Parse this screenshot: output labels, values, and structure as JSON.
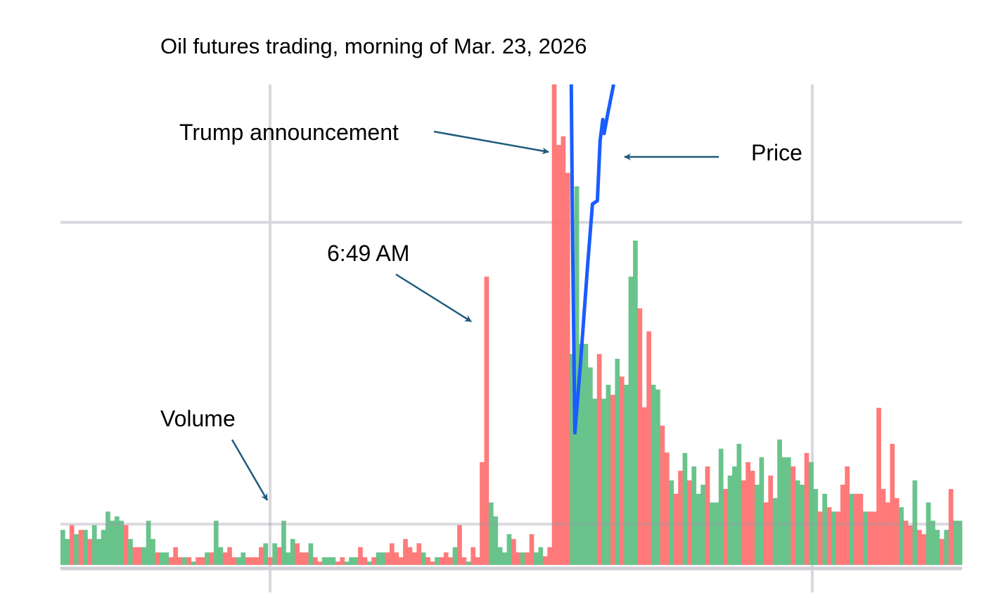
{
  "chart_data": {
    "type": "bar",
    "title": "Oil futures trading, morning of Mar. 23, 2026",
    "xlabel": "",
    "ylabel": "",
    "ylim": [
      0,
      100
    ],
    "grid": true,
    "colors": {
      "up": "#5cbf82",
      "down": "#ff6f6f",
      "price": "#1a5cff",
      "annotation_arrow": "#1e5b7c",
      "grid": "#d8d8de"
    },
    "volume": {
      "values": [
        7.3,
        5.4,
        8.3,
        6.4,
        7.3,
        7.3,
        5.4,
        8.3,
        5.4,
        7.3,
        11.1,
        9.2,
        10.1,
        9.2,
        8.3,
        5.4,
        3.7,
        3.7,
        3.7,
        9.2,
        5.4,
        2.6,
        2.6,
        2.6,
        1.6,
        3.7,
        1.6,
        1.6,
        1.6,
        0.7,
        1.6,
        1.6,
        2.6,
        2.6,
        9.2,
        3.7,
        2.6,
        3.7,
        1.6,
        1.6,
        2.6,
        1.6,
        1.6,
        1.6,
        3.7,
        4.5,
        1.6,
        4.5,
        3.7,
        9.2,
        2.6,
        5.4,
        4.5,
        2.6,
        2.6,
        4.5,
        1.6,
        0.7,
        1.6,
        1.6,
        1.6,
        0.7,
        1.6,
        0.7,
        1.6,
        1.6,
        3.7,
        1.6,
        0.7,
        1.6,
        2.6,
        2.6,
        2.6,
        4.5,
        2.6,
        1.6,
        5.4,
        3.7,
        2.6,
        4.5,
        2.6,
        1.6,
        0.7,
        1.6,
        1.6,
        2.6,
        1.6,
        3.7,
        8.3,
        1.6,
        0.7,
        3.7,
        1.6,
        21.4,
        60.0,
        13.0,
        10.1,
        3.7,
        2.6,
        6.4,
        5.4,
        2.6,
        2.6,
        2.6,
        6.4,
        2.6,
        3.7,
        1.8,
        3.7,
        100,
        87.4,
        89.2,
        81.6,
        43.9,
        78.8,
        46.0,
        46.0,
        41.1,
        34.6,
        43.9,
        34.6,
        37.5,
        35.4,
        42.9,
        39.2,
        37.5,
        60.0,
        67.5,
        53.4,
        32.8,
        48.6,
        37.5,
        36.5,
        29.0,
        23.4,
        17.6,
        14.8,
        19.6,
        23.3,
        17.6,
        20.5,
        14.8,
        16.7,
        20.5,
        13.0,
        13.0,
        24.2,
        15.8,
        18.6,
        20.5,
        25.2,
        17.6,
        21.4,
        19.6,
        16.7,
        22.4,
        13.0,
        18.6,
        13.9,
        26.1,
        22.4,
        22.4,
        20.5,
        17.6,
        16.7,
        23.3,
        21.4,
        15.8,
        11.1,
        14.8,
        12.0,
        11.1,
        11.1,
        16.7,
        20.5,
        14.8,
        14.8,
        14.8,
        11.1,
        11.1,
        11.1,
        32.7,
        15.8,
        13.0,
        25.2,
        13.9,
        12.0,
        9.2,
        8.2,
        17.6,
        7.3,
        6.4,
        13.0,
        9.2,
        7.3,
        5.4,
        7.3,
        15.8,
        9.2,
        9.2
      ],
      "direction": [
        "up",
        "up",
        "down",
        "up",
        "down",
        "up",
        "down",
        "up",
        "up",
        "up",
        "up",
        "up",
        "up",
        "up",
        "down",
        "up",
        "down",
        "down",
        "up",
        "up",
        "up",
        "down",
        "up",
        "up",
        "down",
        "down",
        "down",
        "up",
        "down",
        "up",
        "down",
        "down",
        "up",
        "down",
        "up",
        "up",
        "down",
        "down",
        "down",
        "up",
        "up",
        "down",
        "down",
        "down",
        "down",
        "up",
        "down",
        "up",
        "down",
        "up",
        "up",
        "up",
        "down",
        "down",
        "down",
        "up",
        "down",
        "down",
        "up",
        "up",
        "up",
        "down",
        "down",
        "up",
        "up",
        "up",
        "down",
        "down",
        "up",
        "down",
        "up",
        "up",
        "down",
        "down",
        "down",
        "down",
        "down",
        "down",
        "down",
        "down",
        "up",
        "down",
        "down",
        "up",
        "down",
        "down",
        "down",
        "up",
        "down",
        "down",
        "up",
        "down",
        "down",
        "down",
        "down",
        "up",
        "up",
        "up",
        "up",
        "up",
        "down",
        "down",
        "up",
        "down",
        "down",
        "up",
        "up",
        "down",
        "down",
        "down",
        "down",
        "down",
        "down",
        "up",
        "up",
        "up",
        "up",
        "up",
        "up",
        "down",
        "up",
        "up",
        "down",
        "up",
        "down",
        "up",
        "up",
        "up",
        "down",
        "down",
        "down",
        "up",
        "up",
        "down",
        "down",
        "up",
        "down",
        "down",
        "up",
        "down",
        "up",
        "up",
        "up",
        "down",
        "up",
        "up",
        "up",
        "down",
        "up",
        "up",
        "up",
        "down",
        "down",
        "down",
        "up",
        "up",
        "down",
        "down",
        "up",
        "up",
        "up",
        "up",
        "down",
        "up",
        "up",
        "down",
        "up",
        "up",
        "down",
        "up",
        "down",
        "up",
        "down",
        "down",
        "down",
        "up",
        "down",
        "down",
        "up",
        "down",
        "down",
        "down",
        "down",
        "down",
        "down",
        "down",
        "up",
        "down",
        "down",
        "up",
        "down",
        "down",
        "up",
        "up",
        "up",
        "down",
        "up",
        "down",
        "up",
        "up",
        "up"
      ]
    },
    "price": {
      "x_bar_index": [
        113.3,
        113.6,
        114.1,
        115.3,
        116.9,
        118.0,
        119.1,
        119.7,
        120.3,
        120.6,
        121.3,
        122.7
      ],
      "y": [
        100,
        66.6,
        27.5,
        41.4,
        61.9,
        75.1,
        75.8,
        88.3,
        92.7,
        89.8,
        93.4,
        100
      ]
    },
    "annotations": [
      {
        "text": "Trump announcement"
      },
      {
        "text": "Price"
      },
      {
        "text": "6:49 AM"
      },
      {
        "text": "Volume"
      }
    ]
  }
}
